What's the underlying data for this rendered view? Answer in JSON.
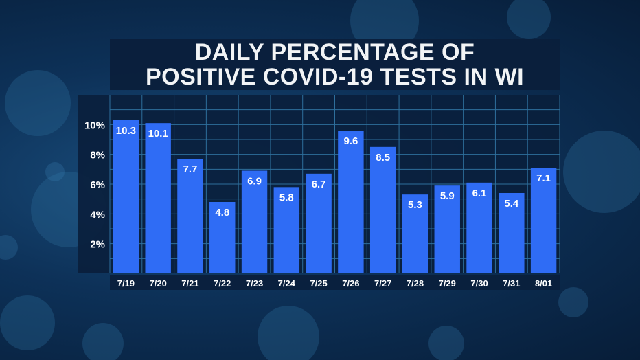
{
  "chart_data": {
    "type": "bar",
    "title_lines": [
      "DAILY PERCENTAGE OF",
      "POSITIVE COVID-19 TESTS IN WI"
    ],
    "categories": [
      "7/19",
      "7/20",
      "7/21",
      "7/22",
      "7/23",
      "7/24",
      "7/25",
      "7/26",
      "7/27",
      "7/28",
      "7/29",
      "7/30",
      "7/31",
      "8/01"
    ],
    "values": [
      10.3,
      10.1,
      7.7,
      4.8,
      6.9,
      5.8,
      6.7,
      9.6,
      8.5,
      5.3,
      5.9,
      6.1,
      5.4,
      7.1
    ],
    "value_labels": [
      "10.3",
      "10.1",
      "7.7",
      "4.8",
      "6.9",
      "5.8",
      "6.7",
      "9.6",
      "8.5",
      "5.3",
      "5.9",
      "6.1",
      "5.4",
      "7.1"
    ],
    "y_ticks": [
      2,
      4,
      6,
      8,
      10
    ],
    "y_tick_labels": [
      "2%",
      "4%",
      "6%",
      "8%",
      "10%"
    ],
    "ylim": [
      0,
      12
    ],
    "grid": true,
    "colors": {
      "bar": "#2f6cf5",
      "panel": "#0a1f3c",
      "grid": "#2e6f9c",
      "text": "#ffffff"
    }
  }
}
